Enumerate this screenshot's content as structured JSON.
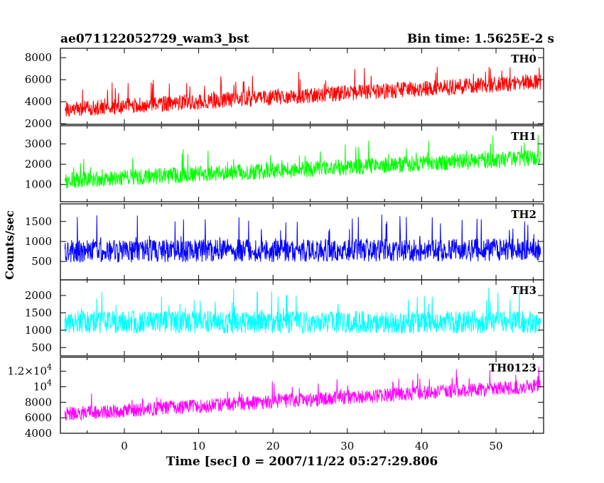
{
  "header": {
    "title": "ae071122052729_wam3_bst",
    "bin_time": "Bin time: 1.5625E-2 s"
  },
  "axes": {
    "xlabel": "Time [sec] 0 = 2007/11/22 05:27:29.806",
    "ylabel": "Counts/sec"
  },
  "chart_data": {
    "type": "line",
    "x_range": [
      -8.6,
      56.4
    ],
    "data_x_range": [
      -8.0,
      56.0
    ],
    "bin_time_s": 0.015625,
    "x_ticks": [
      0,
      10,
      20,
      30,
      40,
      50
    ],
    "x_tick_labels": [
      "0",
      "10",
      "20",
      "30",
      "40",
      "50"
    ],
    "panels": [
      {
        "label": "TH0",
        "color": "#ff0000",
        "ylim": [
          1950,
          8850
        ],
        "y_ticks": [
          2000,
          4000,
          6000,
          8000
        ],
        "y_tick_labels": [
          "2000",
          "4000",
          "6000",
          "8000"
        ],
        "trend_start": 3300,
        "trend_end": 5800,
        "noise": 1150,
        "floor": 1950,
        "ceil": 8850
      },
      {
        "label": "TH1",
        "color": "#00ff00",
        "ylim": [
          150,
          3900
        ],
        "y_ticks": [
          1000,
          2000,
          3000
        ],
        "y_tick_labels": [
          "1000",
          "2000",
          "3000"
        ],
        "trend_start": 1200,
        "trend_end": 2300,
        "noise": 650,
        "floor": 150,
        "ceil": 3900
      },
      {
        "label": "TH2",
        "color": "#0000ff",
        "ylim": [
          40,
          1940
        ],
        "y_ticks": [
          500,
          1000,
          1500
        ],
        "y_tick_labels": [
          "500",
          "1000",
          "1500"
        ],
        "trend_start": 760,
        "trend_end": 790,
        "noise": 460,
        "floor": 40,
        "ceil": 1940
      },
      {
        "label": "TH3",
        "color": "#00ffff",
        "ylim": [
          260,
          2450
        ],
        "y_ticks": [
          500,
          1000,
          1500,
          2000
        ],
        "y_tick_labels": [
          "500",
          "1000",
          "1500",
          "2000"
        ],
        "trend_start": 1230,
        "trend_end": 1230,
        "noise": 520,
        "floor": 260,
        "ceil": 2450
      },
      {
        "label": "TH0123",
        "color": "#ff00ff",
        "ylim": [
          4000,
          13800
        ],
        "y_ticks": [
          4000,
          6000,
          8000,
          10000,
          12000
        ],
        "y_tick_labels": [
          "4000",
          "6000",
          "8000",
          "10^4",
          "1.2×10^4"
        ],
        "trend_start": 6500,
        "trend_end": 10100,
        "noise": 1450,
        "floor": 4000,
        "ceil": 13800
      }
    ]
  }
}
